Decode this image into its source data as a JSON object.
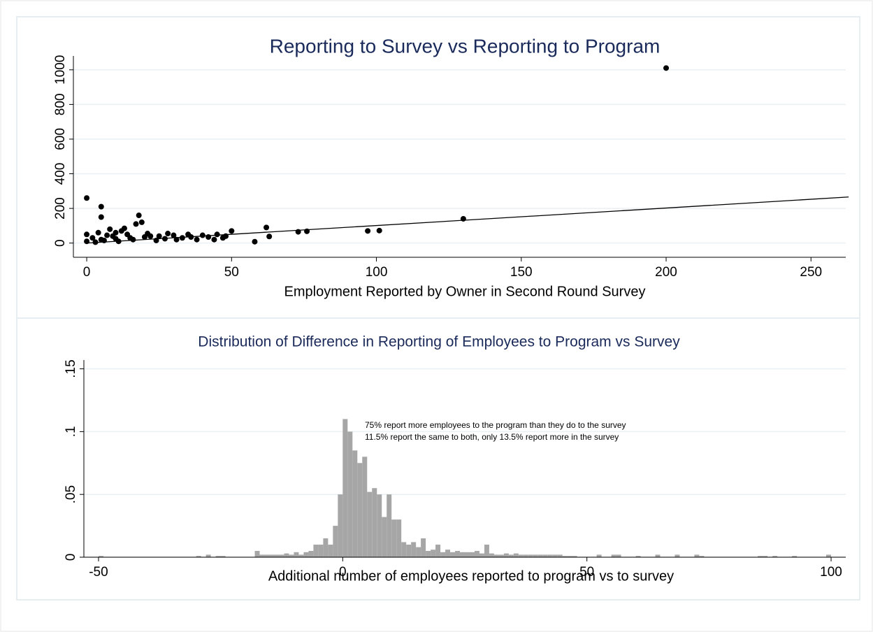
{
  "chart_data": [
    {
      "type": "scatter",
      "title": "Reporting to Survey vs Reporting to Program",
      "x_label": "Employment Reported by Owner in Second Round Survey",
      "xlim": [
        -4.6,
        262
      ],
      "xticks": [
        0,
        50,
        100,
        150,
        200,
        250
      ],
      "ylim": [
        -82,
        1080
      ],
      "yticks": [
        0,
        200,
        400,
        600,
        800,
        1000
      ],
      "grid": true,
      "series": [
        {
          "type": "scatter",
          "color": "#000000",
          "x": [
            0,
            5,
            5,
            18,
            19,
            17,
            130,
            200,
            62,
            63,
            97,
            101,
            73,
            76,
            58,
            50,
            45,
            40,
            35,
            30,
            25,
            20,
            15,
            10,
            5,
            0,
            0,
            2,
            8,
            10,
            12,
            14,
            22,
            28,
            33,
            38,
            42,
            48,
            3,
            6,
            9,
            11,
            16,
            24,
            27,
            31,
            36,
            44,
            47,
            4,
            7,
            13,
            21
          ],
          "values": [
            260,
            210,
            150,
            160,
            120,
            110,
            140,
            1010,
            90,
            38,
            70,
            72,
            65,
            68,
            8,
            70,
            50,
            45,
            50,
            45,
            40,
            35,
            30,
            25,
            20,
            10,
            50,
            30,
            80,
            60,
            70,
            50,
            40,
            55,
            30,
            20,
            35,
            40,
            5,
            15,
            40,
            10,
            20,
            15,
            25,
            20,
            35,
            20,
            30,
            60,
            45,
            85,
            55
          ]
        },
        {
          "type": "line",
          "color": "#000000",
          "x": [
            0,
            263
          ],
          "values": [
            0,
            266
          ]
        }
      ]
    },
    {
      "type": "histogram",
      "title": "Distribution of Difference in Reporting of Employees to Program vs Survey",
      "x_label": "Additional number of employees reported to program vs to survey",
      "annotations": [
        "75% report more employees to the program than they do to the survey",
        "11.5% report the same to both, only 13.5% report more in the survey"
      ],
      "xlim": [
        -53,
        103
      ],
      "xticks": [
        -50,
        0,
        50,
        100
      ],
      "ylim": [
        0,
        0.157
      ],
      "yticks": [
        0,
        {
          "value": 0.05,
          "label": ".05"
        },
        {
          "value": 0.1,
          "label": ".1"
        },
        {
          "value": 0.15,
          "label": ".15"
        }
      ],
      "grid": true,
      "color": "#a6a6a6",
      "bins": [
        -50,
        -49,
        -48,
        -47,
        -46,
        -45,
        -44,
        -43,
        -42,
        -41,
        -40,
        -39,
        -38,
        -37,
        -36,
        -35,
        -34,
        -33,
        -32,
        -31,
        -30,
        -29,
        -28,
        -27,
        -26,
        -25,
        -24,
        -23,
        -22,
        -21,
        -20,
        -19,
        -18,
        -17,
        -16,
        -15,
        -14,
        -13,
        -12,
        -11,
        -10,
        -9,
        -8,
        -7,
        -6,
        -5,
        -4,
        -3,
        -2,
        -1,
        0,
        1,
        2,
        3,
        4,
        5,
        6,
        7,
        8,
        9,
        10,
        11,
        12,
        13,
        14,
        15,
        16,
        17,
        18,
        19,
        20,
        21,
        22,
        23,
        24,
        25,
        26,
        27,
        28,
        29,
        30,
        31,
        32,
        33,
        34,
        35,
        36,
        37,
        38,
        39,
        40,
        41,
        42,
        43,
        44,
        45,
        46,
        47,
        48,
        49,
        50,
        51,
        52,
        53,
        54,
        55,
        56,
        57,
        58,
        59,
        60,
        61,
        62,
        63,
        64,
        65,
        66,
        67,
        68,
        69,
        70,
        71,
        72,
        73,
        74,
        75,
        76,
        77,
        78,
        79,
        80,
        81,
        82,
        83,
        84,
        85,
        86,
        87,
        88,
        89,
        90,
        91,
        92,
        93,
        94,
        95,
        96,
        97,
        98,
        99,
        100
      ],
      "values": [
        0.001,
        0,
        0,
        0,
        0,
        0,
        0,
        0,
        0,
        0,
        0,
        0,
        0,
        0,
        0,
        0,
        0,
        0,
        0,
        0,
        0.001,
        0,
        0.002,
        0,
        0.001,
        0.001,
        0,
        0,
        0,
        0,
        0,
        0,
        0.005,
        0.002,
        0.002,
        0.002,
        0.002,
        0.002,
        0.003,
        0.002,
        0.004,
        0.002,
        0.004,
        0.005,
        0.01,
        0.01,
        0.015,
        0.01,
        0.025,
        0.05,
        0.11,
        0.1,
        0.085,
        0.075,
        0.08,
        0.052,
        0.055,
        0.05,
        0.032,
        0.05,
        0.03,
        0.03,
        0.012,
        0.01,
        0.012,
        0.008,
        0.015,
        0.005,
        0.006,
        0.01,
        0.004,
        0.006,
        0.004,
        0.005,
        0.004,
        0.004,
        0.004,
        0.005,
        0.003,
        0.01,
        0.003,
        0.002,
        0.002,
        0.003,
        0.002,
        0.003,
        0.002,
        0.002,
        0.002,
        0.002,
        0.002,
        0.002,
        0.002,
        0.002,
        0.002,
        0.001,
        0.001,
        0.001,
        0,
        0,
        0,
        0,
        0.002,
        0,
        0,
        0.002,
        0.002,
        0,
        0,
        0,
        0.001,
        0,
        0,
        0,
        0.002,
        0,
        0,
        0,
        0.002,
        0,
        0,
        0,
        0.002,
        0.001,
        0,
        0,
        0,
        0,
        0,
        0,
        0,
        0,
        0,
        0,
        0,
        0.001,
        0.001,
        0,
        0.001,
        0,
        0,
        0,
        0.001,
        0,
        0,
        0,
        0,
        0,
        0,
        0.002
      ]
    }
  ]
}
